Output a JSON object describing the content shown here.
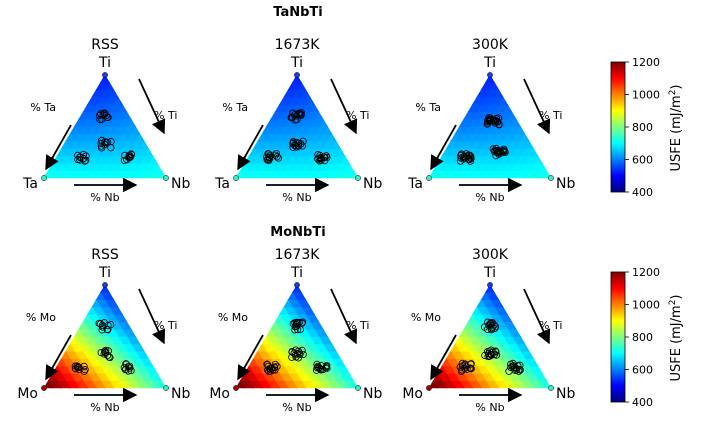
{
  "figure": {
    "colormap": "jet",
    "colorscale_range": [
      400,
      1200
    ],
    "colorbar_label": "USFE (mJ/m",
    "colorbar_label_sup": "2",
    "colorbar_label_end": ")",
    "colorbar_ticks": [
      "400",
      "600",
      "800",
      "1000",
      "1200"
    ],
    "rows": [
      {
        "system": "TaNbTi",
        "vertices": {
          "top": "Ti",
          "left": "Ta",
          "right": "Nb"
        },
        "vertex_colors": {
          "top": "#1a3cf0",
          "left": "#36ecc4",
          "right": "#36ecc4"
        },
        "arrows": {
          "left": "% Ta",
          "right": "% Ti",
          "bottom": "% Nb"
        },
        "panels": [
          {
            "title": "RSS",
            "point_count": 40
          },
          {
            "title": "1673K",
            "point_count": 55
          },
          {
            "title": "300K",
            "point_count": 60
          }
        ]
      },
      {
        "system": "MoNbTi",
        "vertices": {
          "top": "Ti",
          "left": "Mo",
          "right": "Nb"
        },
        "vertex_colors": {
          "top": "#1a3cf0",
          "left": "#a00000",
          "right": "#36ecc4"
        },
        "arrows": {
          "left": "% Mo",
          "right": "% Ti",
          "bottom": "% Nb"
        },
        "panels": [
          {
            "title": "RSS",
            "point_count": 40
          },
          {
            "title": "1673K",
            "point_count": 55
          },
          {
            "title": "300K",
            "point_count": 60
          }
        ]
      }
    ]
  },
  "chart_data": [
    {
      "type": "scatter",
      "system": "TaNbTi",
      "subplot_titles": [
        "RSS",
        "1673K",
        "300K"
      ],
      "note_usfe_vertex_estimates": {
        "Ti": 520,
        "Ta": 720,
        "Nb": 720
      },
      "clusters": [
        {
          "panel": "RSS",
          "compositions_TaNbTi": [
            [
              0.2,
              0.2,
              0.6
            ],
            [
              0.33,
              0.33,
              0.34
            ],
            [
              0.6,
              0.2,
              0.2
            ],
            [
              0.2,
              0.6,
              0.2
            ]
          ]
        },
        {
          "panel": "1673K",
          "compositions_TaNbTi": [
            [
              0.2,
              0.2,
              0.6
            ],
            [
              0.33,
              0.33,
              0.34
            ],
            [
              0.6,
              0.2,
              0.2
            ],
            [
              0.2,
              0.6,
              0.2
            ]
          ]
        },
        {
          "panel": "300K",
          "compositions_TaNbTi": [
            [
              0.25,
              0.3,
              0.45
            ],
            [
              0.55,
              0.2,
              0.25
            ],
            [
              0.2,
              0.6,
              0.2
            ]
          ]
        }
      ],
      "clim": [
        400,
        1200
      ]
    },
    {
      "type": "scatter",
      "system": "MoNbTi",
      "subplot_titles": [
        "RSS",
        "1673K",
        "300K"
      ],
      "note_usfe_vertex_estimates": {
        "Ti": 520,
        "Mo": 1250,
        "Nb": 720
      },
      "clusters": [
        {
          "panel": "RSS",
          "compositions_MoNbTi": [
            [
              0.2,
              0.2,
              0.6
            ],
            [
              0.33,
              0.33,
              0.34
            ],
            [
              0.6,
              0.2,
              0.2
            ],
            [
              0.2,
              0.6,
              0.2
            ]
          ]
        },
        {
          "panel": "1673K",
          "compositions_MoNbTi": [
            [
              0.2,
              0.2,
              0.6
            ],
            [
              0.33,
              0.33,
              0.34
            ],
            [
              0.6,
              0.2,
              0.2
            ],
            [
              0.2,
              0.6,
              0.2
            ]
          ]
        },
        {
          "panel": "300K",
          "compositions_MoNbTi": [
            [
              0.2,
              0.2,
              0.6
            ],
            [
              0.33,
              0.33,
              0.34
            ],
            [
              0.6,
              0.2,
              0.2
            ],
            [
              0.2,
              0.6,
              0.2
            ]
          ]
        }
      ],
      "clim": [
        400,
        1200
      ]
    }
  ]
}
